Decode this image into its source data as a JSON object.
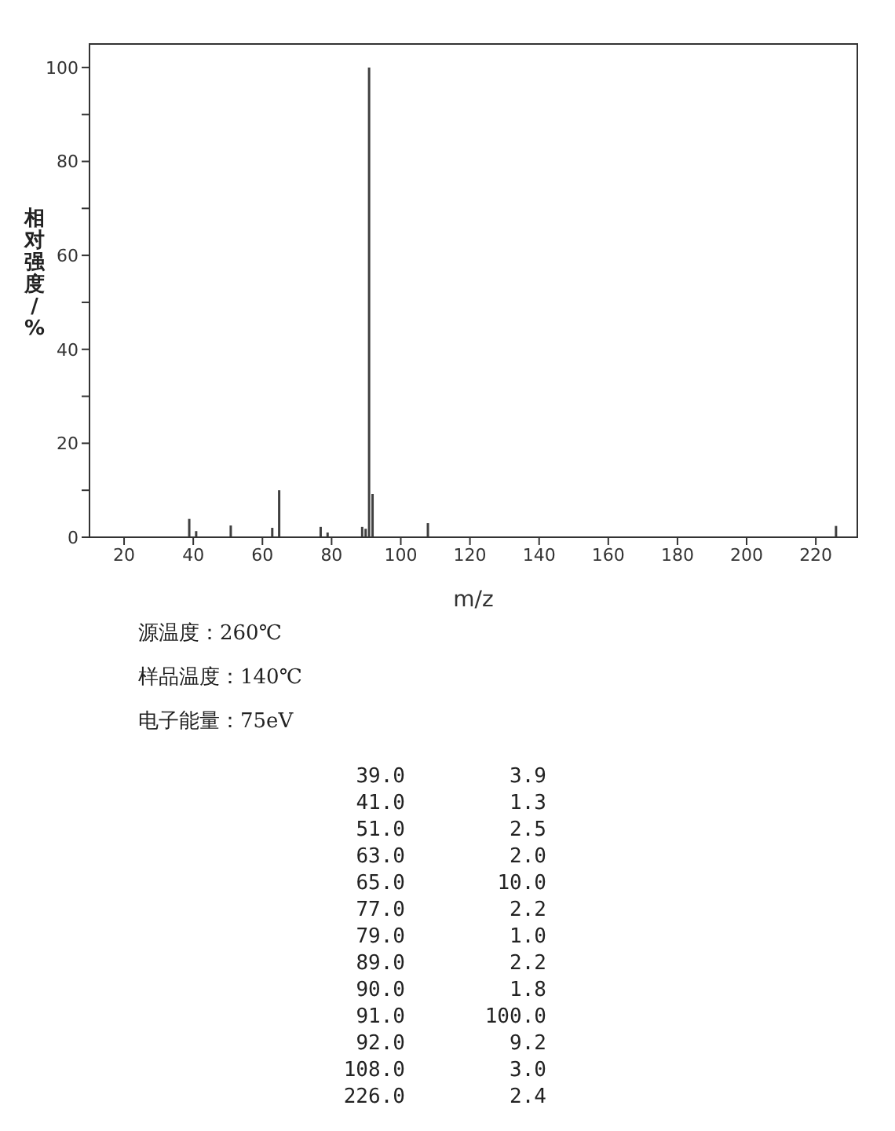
{
  "chart_data": {
    "type": "bar",
    "xlabel": "m/z",
    "ylabel": "相对强度/%",
    "x": [
      39,
      41,
      51,
      63,
      65,
      77,
      79,
      89,
      90,
      91,
      92,
      108,
      226
    ],
    "values": [
      3.9,
      1.3,
      2.5,
      2.0,
      10.0,
      2.2,
      1.0,
      2.2,
      1.8,
      100.0,
      9.2,
      3.0,
      2.4
    ],
    "color": "#404040",
    "xlim": [
      10,
      232
    ],
    "xticks": [
      20,
      40,
      60,
      80,
      100,
      120,
      140,
      160,
      180,
      200,
      220
    ],
    "ylim": [
      0,
      105
    ],
    "yticks": [
      0,
      {
        "value": 10,
        "label": null
      },
      20,
      {
        "value": 30,
        "label": null
      },
      40,
      {
        "value": 50,
        "label": null
      },
      60,
      {
        "value": 70,
        "label": null
      },
      80,
      {
        "value": 90,
        "label": null
      },
      100
    ],
    "grid": false,
    "legend": false,
    "annotations": [
      "源温度：260℃",
      "样品温度：140℃",
      "电子能量：75eV",
      "39.0",
      "3.9",
      "41.0",
      "1.3",
      "51.0",
      "2.5",
      "63.0",
      "2.0",
      "65.0",
      "10.0",
      "77.0",
      "2.2",
      "79.0",
      "1.0",
      "89.0",
      "2.2",
      "90.0",
      "1.8",
      "91.0",
      "100.0",
      "92.0",
      "9.2",
      "108.0",
      "3.0",
      "226.0",
      "2.4"
    ]
  }
}
